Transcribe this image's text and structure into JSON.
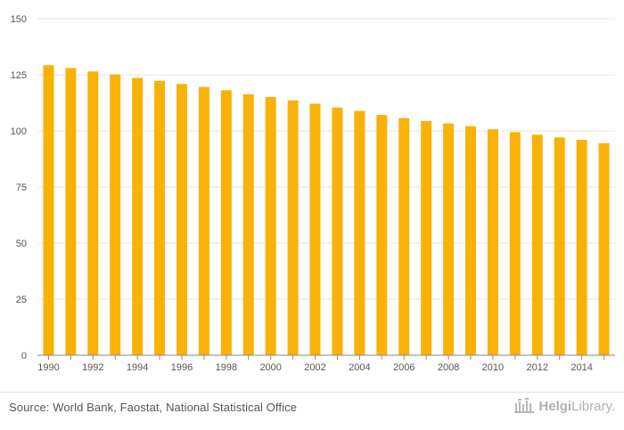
{
  "chart_data": {
    "type": "bar",
    "categories": [
      "1990",
      "1991",
      "1992",
      "1993",
      "1994",
      "1995",
      "1996",
      "1997",
      "1998",
      "1999",
      "2000",
      "2001",
      "2002",
      "2003",
      "2004",
      "2005",
      "2006",
      "2007",
      "2008",
      "2009",
      "2010",
      "2011",
      "2012",
      "2013",
      "2014",
      "2015"
    ],
    "x_tick_labels": [
      "1990",
      "1992",
      "1994",
      "1996",
      "1998",
      "2000",
      "2002",
      "2004",
      "2006",
      "2008",
      "2010",
      "2012",
      "2014"
    ],
    "values": [
      129.3,
      128.0,
      126.5,
      125.2,
      123.6,
      122.3,
      120.9,
      119.6,
      118.1,
      116.3,
      115.1,
      113.6,
      112.1,
      110.4,
      108.9,
      107.1,
      105.7,
      104.4,
      103.3,
      102.1,
      100.7,
      99.4,
      98.3,
      97.1,
      96.0,
      94.5
    ],
    "yticks": [
      0,
      25,
      50,
      75,
      100,
      125,
      150
    ],
    "ylim": [
      0,
      150
    ],
    "grid": true,
    "bar_color": "#F9B208"
  },
  "footer": {
    "source": "Source: World Bank, Faostat, National Statistical Office",
    "brand_main": "Helgi",
    "brand_sub": "Library."
  },
  "colors": {
    "gridline": "#e6e6e6",
    "axis_text": "#555555",
    "brand": "#b0b0b0"
  }
}
